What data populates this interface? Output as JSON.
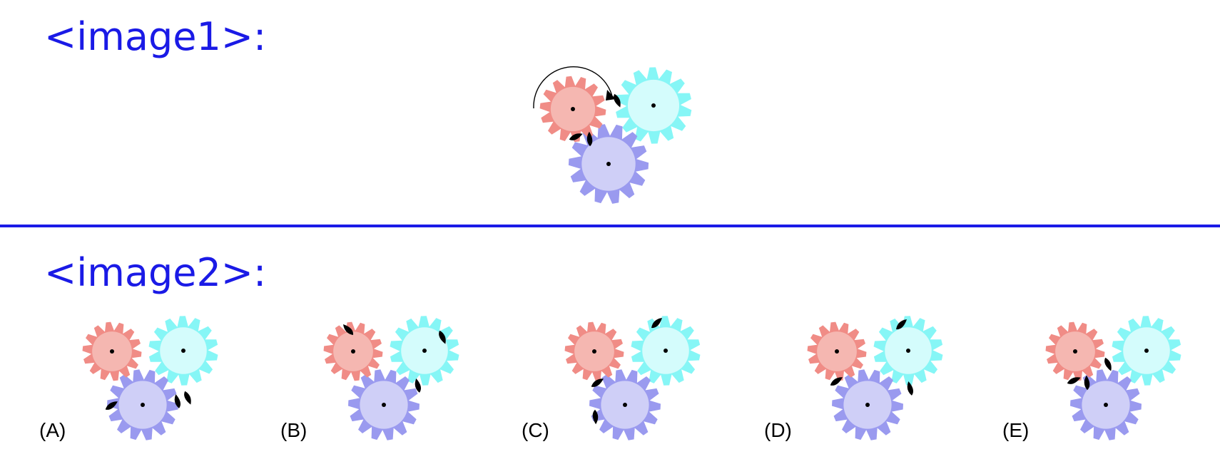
{
  "headings": {
    "image1": "<image1>:",
    "image2": "<image2>:"
  },
  "colors": {
    "heading_text": "#1a1ae6",
    "divider": "#1a1ae6",
    "gear_red_fill": "#f5b7b1",
    "gear_red_teeth": "#f08c86",
    "gear_cyan_fill": "#d4fcfc",
    "gear_cyan_teeth": "#86f6f6",
    "gear_blue_fill": "#cfcff7",
    "gear_blue_teeth": "#9a9aef",
    "marker": "#000000"
  },
  "image1": {
    "description_icon": "three-meshing-gears-icon",
    "rotation_arrow": "clockwise-arc-arrow-icon"
  },
  "options": [
    {
      "label": "(A)"
    },
    {
      "label": "(B)"
    },
    {
      "label": "(C)"
    },
    {
      "label": "(D)"
    },
    {
      "label": "(E)"
    }
  ]
}
